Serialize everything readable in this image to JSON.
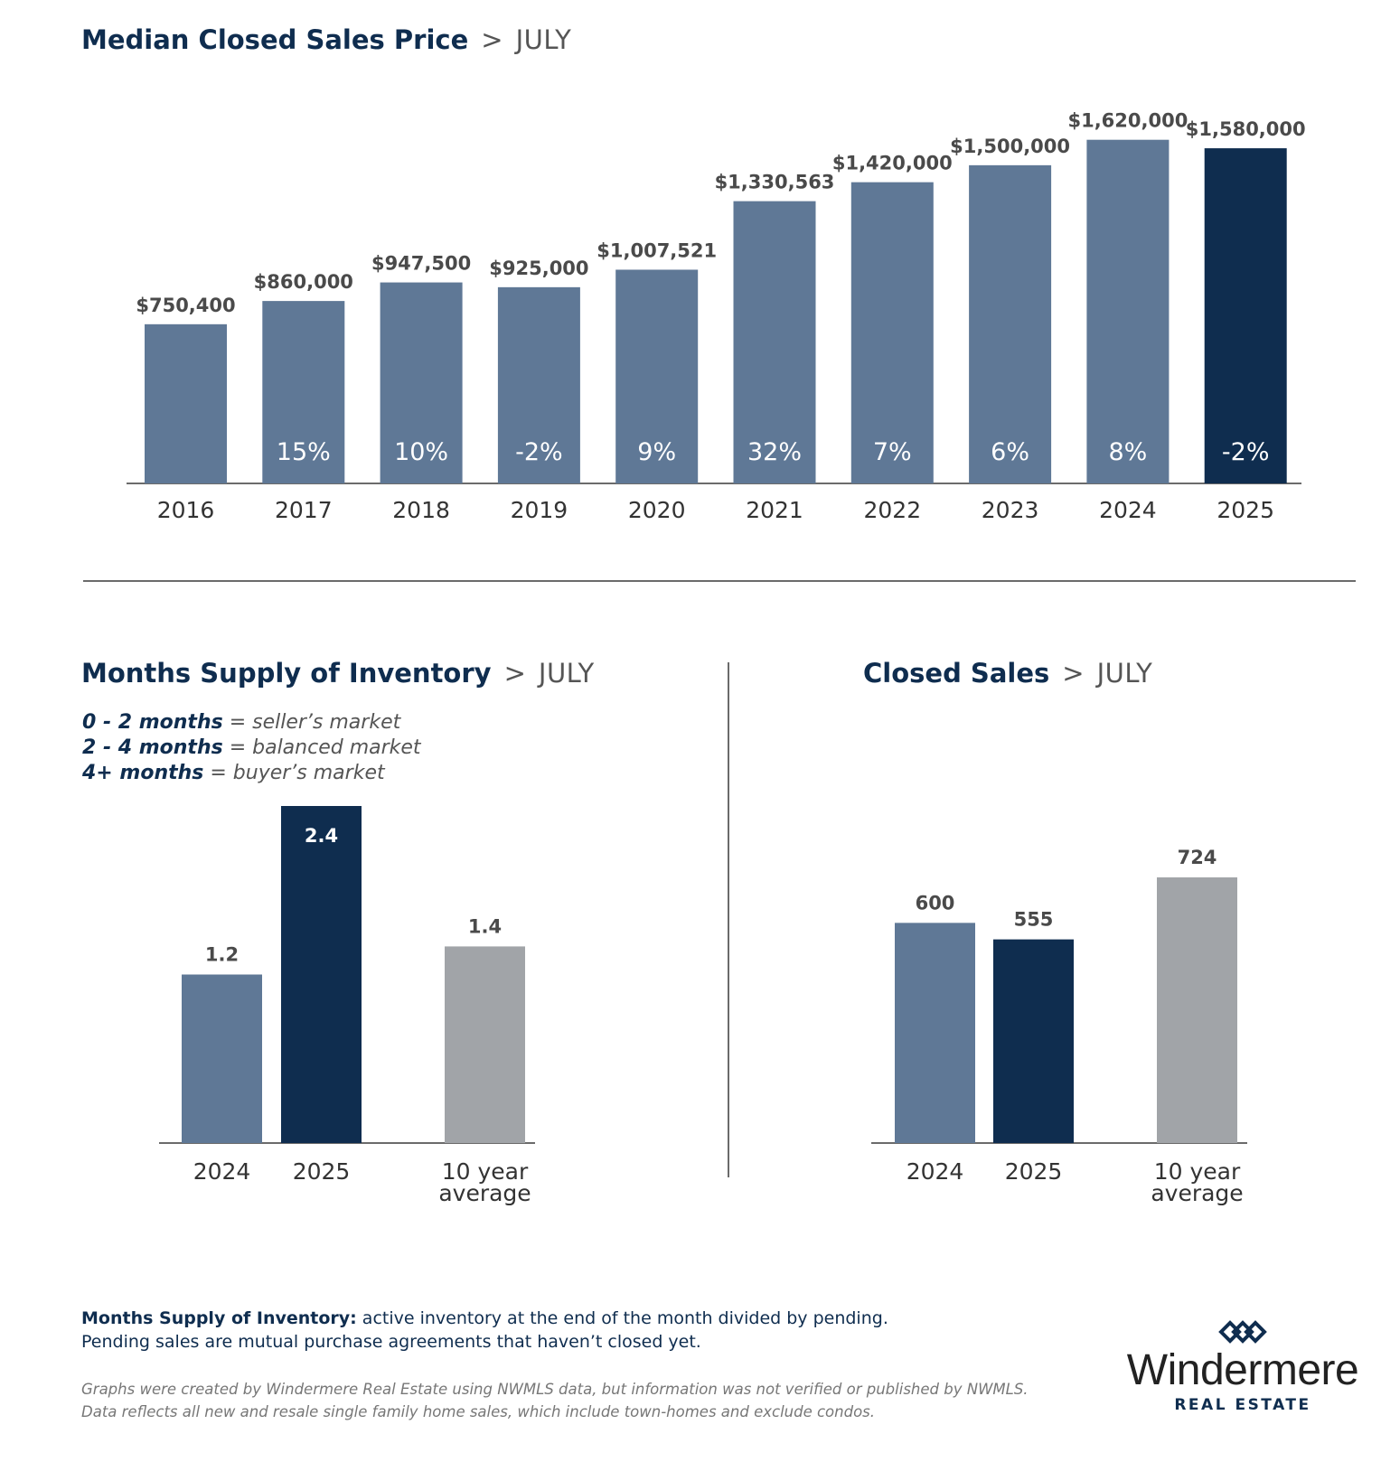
{
  "colors": {
    "bar": "#5f7896",
    "highlight": "#0f2d4f",
    "average": "#a1a4a8",
    "axis": "#6b6b6b"
  },
  "chart_data": [
    {
      "id": "median_price",
      "type": "bar",
      "title": "Median Closed Sales Price",
      "title_sep": ">",
      "subtitle": "JULY",
      "categories": [
        "2016",
        "2017",
        "2018",
        "2019",
        "2020",
        "2021",
        "2022",
        "2023",
        "2024",
        "2025"
      ],
      "values": [
        750400,
        860000,
        947500,
        925000,
        1007521,
        1330563,
        1420000,
        1500000,
        1620000,
        1580000
      ],
      "value_labels": [
        "$750,400",
        "$860,000",
        "$947,500",
        "$925,000",
        "$1,007,521",
        "$1,330,563",
        "$1,420,000",
        "$1,500,000",
        "$1,620,000",
        "$1,580,000"
      ],
      "change_labels": [
        "",
        "15%",
        "10%",
        "-2%",
        "9%",
        "32%",
        "7%",
        "6%",
        "8%",
        "-2%"
      ],
      "highlight_index": 9,
      "ylim": [
        0,
        1640000
      ]
    },
    {
      "id": "months_supply",
      "type": "bar",
      "title": "Months Supply of Inventory",
      "title_sep": ">",
      "subtitle": "JULY",
      "categories": [
        "2024",
        "2025",
        "10 year average"
      ],
      "category_lines": [
        [
          "2024"
        ],
        [
          "2025"
        ],
        [
          "10 year",
          "average"
        ]
      ],
      "values": [
        1.2,
        2.4,
        1.4
      ],
      "value_labels": [
        "1.2",
        "2.4",
        "1.4"
      ],
      "bar_styles": [
        "bar",
        "highlight",
        "average"
      ],
      "ylim": [
        0,
        2.4
      ]
    },
    {
      "id": "closed_sales",
      "type": "bar",
      "title": "Closed Sales",
      "title_sep": ">",
      "subtitle": "JULY",
      "categories": [
        "2024",
        "2025",
        "10 year average"
      ],
      "category_lines": [
        [
          "2024"
        ],
        [
          "2025"
        ],
        [
          "10 year",
          "average"
        ]
      ],
      "values": [
        600,
        555,
        724
      ],
      "value_labels": [
        "600",
        "555",
        "724"
      ],
      "bar_styles": [
        "bar",
        "highlight",
        "average"
      ],
      "ylim": [
        0,
        724
      ]
    }
  ],
  "legend": {
    "rows": [
      {
        "range": "0 - 2 months",
        "eq": " = ",
        "meaning": "seller’s market"
      },
      {
        "range": "2 - 4 months",
        "eq": " = ",
        "meaning": "balanced market"
      },
      {
        "range": "4+ months",
        "eq": " = ",
        "meaning": "buyer’s market"
      }
    ]
  },
  "footnote": {
    "term": "Months Supply of Inventory:",
    "definition": " active inventory at the end of the month divided by pending.",
    "line2": "Pending sales are mutual purchase agreements that haven’t closed yet."
  },
  "disclaimer": {
    "line1": "Graphs were created by Windermere Real Estate using NWMLS data, but information was not verified or published by NWMLS.",
    "line2": "Data reflects all new and resale single family home sales, which include town-homes and exclude condos."
  },
  "logo": {
    "name": "Windermere",
    "tagline": "REAL ESTATE"
  }
}
